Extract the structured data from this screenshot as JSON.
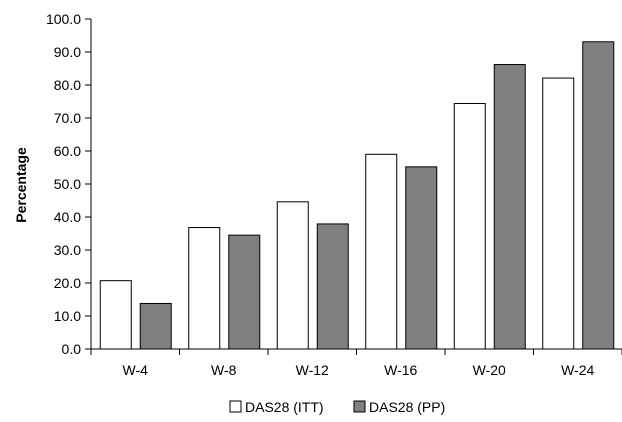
{
  "chart_data": {
    "type": "bar",
    "categories": [
      "W-4",
      "W-8",
      "W-12",
      "W-16",
      "W-20",
      "W-24"
    ],
    "series": [
      {
        "name": "DAS28 (ITT)",
        "values": [
          20.7,
          36.8,
          44.6,
          59.0,
          74.4,
          82.1
        ],
        "color": "#ffffff"
      },
      {
        "name": "DAS28 (PP)",
        "values": [
          13.8,
          34.5,
          37.9,
          55.2,
          86.2,
          93.1
        ],
        "color": "#808080"
      }
    ],
    "title": "",
    "xlabel": "",
    "ylabel": "Percentage",
    "ylim": [
      0,
      100
    ],
    "yticks": [
      "0.0",
      "10.0",
      "20.0",
      "30.0",
      "40.0",
      "50.0",
      "60.0",
      "70.0",
      "80.0",
      "90.0",
      "100.0"
    ],
    "grid": false,
    "legend_position": "bottom"
  }
}
